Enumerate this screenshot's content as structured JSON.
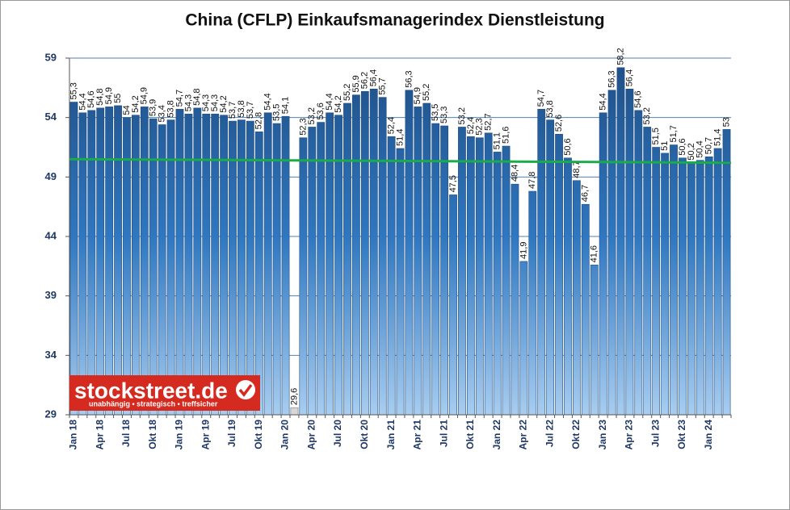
{
  "chart_data": {
    "type": "bar",
    "title": "China (CFLP) Einkaufsmanagerindex Dienstleistung",
    "categories": [
      "Jan 18",
      null,
      null,
      "Apr 18",
      null,
      null,
      "Jul 18",
      null,
      null,
      "Okt 18",
      null,
      null,
      "Jan 19",
      null,
      null,
      "Apr 19",
      null,
      null,
      "Jul 19",
      null,
      null,
      "Okt 19",
      null,
      null,
      "Jan 20",
      null,
      null,
      "Apr 20",
      null,
      null,
      "Jul 20",
      null,
      null,
      "Okt 20",
      null,
      null,
      "Jan 21",
      null,
      null,
      "Apr 21",
      null,
      null,
      "Jul 21",
      null,
      null,
      "Okt 21",
      null,
      null,
      "Jan 22",
      null,
      null,
      "Apr 22",
      null,
      null,
      "Jul 22",
      null,
      null,
      "Okt 22",
      null,
      null,
      "Jan 23",
      null,
      null,
      "Apr 23",
      null,
      null,
      "Jul 23",
      null,
      null,
      "Okt 23",
      null,
      null,
      "Jan 24",
      null,
      null
    ],
    "values": [
      55.3,
      54.4,
      54.6,
      54.8,
      54.9,
      55,
      54,
      54.2,
      54.9,
      53.9,
      53.4,
      53.8,
      54.7,
      54.3,
      54.8,
      54.3,
      54.3,
      54.2,
      53.7,
      53.8,
      53.7,
      52.8,
      54.4,
      53.5,
      54.1,
      29.6,
      52.3,
      53.2,
      53.6,
      54.4,
      54.2,
      55.2,
      55.9,
      56.2,
      56.4,
      55.7,
      52.4,
      51.4,
      56.3,
      54.9,
      55.2,
      53.5,
      53.3,
      47.5,
      53.2,
      52.4,
      52.3,
      52.7,
      51.1,
      51.6,
      48.4,
      41.9,
      47.8,
      54.7,
      53.8,
      52.6,
      50.6,
      48.7,
      46.7,
      41.6,
      54.4,
      56.3,
      58.2,
      56.4,
      54.6,
      53.2,
      51.5,
      51,
      51.7,
      50.6,
      50.2,
      50.4,
      50.7,
      51.4,
      53
    ],
    "value_labels": [
      "55,3",
      "54,4",
      "54,6",
      "54,8",
      "54,9",
      "55",
      "54",
      "54,2",
      "54,9",
      "53,9",
      "53,4",
      "53,8",
      "54,7",
      "54,3",
      "54,8",
      "54,3",
      "54,3",
      "54,2",
      "53,7",
      "53,8",
      "53,7",
      "52,8",
      "54,4",
      "53,5",
      "54,1",
      "29,6",
      "52,3",
      "53,2",
      "53,6",
      "54,4",
      "54,2",
      "55,2",
      "55,9",
      "56,2",
      "56,4",
      "55,7",
      "52,4",
      "51,4",
      "56,3",
      "54,9",
      "55,2",
      "53,5",
      "53,3",
      "47,5",
      "53,2",
      "52,4",
      "52,3",
      "52,7",
      "51,1",
      "51,6",
      "48,4",
      "41,9",
      "47,8",
      "54,7",
      "53,8",
      "52,6",
      "50,6",
      "48,7",
      "46,7",
      "41,6",
      "54,4",
      "56,3",
      "58,2",
      "56,4",
      "54,6",
      "53,2",
      "51,5",
      "51",
      "51,7",
      "50,6",
      "50,2",
      "50,4",
      "50,7",
      "51,4",
      "53"
    ],
    "color": "#1f4e85",
    "highlight": {
      "index": 25,
      "color": "#b8b8b8"
    },
    "trend_line": {
      "values": [
        50.5,
        50.2
      ],
      "color": "#1aab4a"
    },
    "ylim": [
      29,
      59
    ],
    "yticks": [
      29,
      34,
      39,
      44,
      49,
      54,
      59
    ],
    "grid": true,
    "logo": {
      "name": "stockstreet.de",
      "slogan": "unabhängig • strategisch • treffsicher"
    }
  }
}
